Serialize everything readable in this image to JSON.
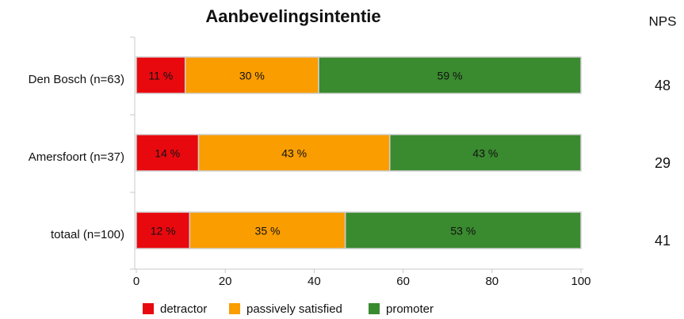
{
  "chart_data": {
    "type": "stacked-barh",
    "title": "Aanbevelingsintentie",
    "categories": [
      "Den Bosch (n=63)",
      "Amersfoort (n=37)",
      "totaal (n=100)"
    ],
    "series": [
      {
        "name": "detractor",
        "color": "#e8090f",
        "values": [
          11,
          14,
          12
        ],
        "value_labels": [
          "11 %",
          "14 %",
          "12 %"
        ]
      },
      {
        "name": "passively satisfied",
        "color": "#f99d00",
        "values": [
          30,
          43,
          35
        ],
        "value_labels": [
          "30 %",
          "43 %",
          "35 %"
        ]
      },
      {
        "name": "promoter",
        "color": "#3a8a2f",
        "values": [
          59,
          43,
          53
        ],
        "value_labels": [
          "59 %",
          "43 %",
          "53 %"
        ]
      }
    ],
    "xlim": [
      0,
      100
    ],
    "xticks": [
      0,
      20,
      40,
      60,
      80,
      100
    ],
    "nps": {
      "label": "NPS",
      "values": [
        48,
        29,
        41
      ]
    }
  }
}
